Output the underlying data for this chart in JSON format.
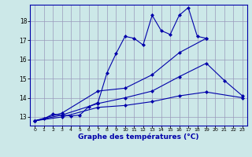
{
  "bg_color": "#cce8e8",
  "grid_color": "#9999bb",
  "line_color": "#0000aa",
  "title": "Graphe des températures (°C)",
  "xlabel_fontsize": 6.5,
  "ylabel_ticks": [
    13,
    14,
    15,
    16,
    17,
    18
  ],
  "xlim": [
    -0.5,
    23.5
  ],
  "ylim": [
    12.55,
    18.85
  ],
  "xticks": [
    0,
    1,
    2,
    3,
    4,
    5,
    6,
    7,
    8,
    9,
    10,
    11,
    12,
    13,
    14,
    15,
    16,
    17,
    18,
    19,
    20,
    21,
    22,
    23
  ],
  "line1_x": [
    0,
    1,
    2,
    3,
    4,
    5,
    6,
    7,
    8,
    9,
    10,
    11,
    12,
    13,
    14,
    15,
    16,
    17,
    18,
    19
  ],
  "line1_y": [
    12.8,
    12.9,
    13.15,
    13.1,
    13.05,
    13.1,
    13.55,
    13.75,
    15.3,
    16.3,
    17.2,
    17.1,
    16.75,
    18.3,
    17.5,
    17.3,
    18.3,
    18.7,
    17.2,
    17.1
  ],
  "line2_x": [
    0,
    3,
    7,
    10,
    13,
    16,
    19
  ],
  "line2_y": [
    12.8,
    13.2,
    14.35,
    14.5,
    15.2,
    16.35,
    17.1
  ],
  "line3_x": [
    0,
    3,
    7,
    10,
    13,
    16,
    19,
    21,
    23
  ],
  "line3_y": [
    12.8,
    13.1,
    13.7,
    14.0,
    14.35,
    15.1,
    15.8,
    14.9,
    14.1
  ],
  "line4_x": [
    0,
    3,
    7,
    10,
    13,
    16,
    19,
    23
  ],
  "line4_y": [
    12.8,
    13.0,
    13.5,
    13.6,
    13.8,
    14.1,
    14.3,
    14.0
  ]
}
